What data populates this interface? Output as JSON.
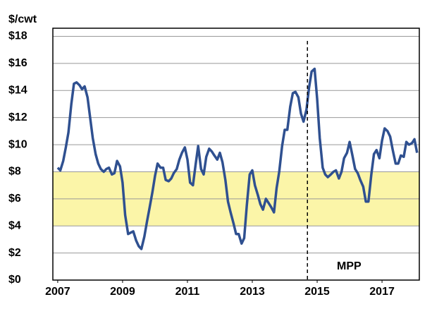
{
  "chart_data": {
    "type": "line",
    "y_label": "$/cwt",
    "annotation": "MPP",
    "vline": 2014.7,
    "band": [
      4,
      8
    ],
    "band_color": "#fbf5a8",
    "grid": true,
    "xlim": [
      2006.85,
      2018.15
    ],
    "ylim": [
      0,
      18.6
    ],
    "xticks": [
      2007,
      2009,
      2011,
      2013,
      2015,
      2017
    ],
    "yticks": [
      {
        "value": 0,
        "label": "$0"
      },
      {
        "value": 2,
        "label": "$2"
      },
      {
        "value": 4,
        "label": "$4"
      },
      {
        "value": 6,
        "label": "$6"
      },
      {
        "value": 8,
        "label": "$8"
      },
      {
        "value": 10,
        "label": "$10"
      },
      {
        "value": 12,
        "label": "$12"
      },
      {
        "value": 14,
        "label": "$14"
      },
      {
        "value": 16,
        "label": "$16"
      },
      {
        "value": 18,
        "label": "$18"
      }
    ],
    "x": [
      2007,
      2007.08,
      2007.17,
      2007.25,
      2007.33,
      2007.42,
      2007.5,
      2007.58,
      2007.67,
      2007.75,
      2007.83,
      2007.92,
      2008,
      2008.08,
      2008.17,
      2008.25,
      2008.33,
      2008.42,
      2008.5,
      2008.58,
      2008.67,
      2008.75,
      2008.83,
      2008.92,
      2009,
      2009.08,
      2009.17,
      2009.25,
      2009.33,
      2009.42,
      2009.5,
      2009.58,
      2009.67,
      2009.75,
      2009.83,
      2009.92,
      2010,
      2010.08,
      2010.17,
      2010.25,
      2010.33,
      2010.42,
      2010.5,
      2010.58,
      2010.67,
      2010.75,
      2010.83,
      2010.92,
      2011,
      2011.08,
      2011.17,
      2011.25,
      2011.33,
      2011.42,
      2011.5,
      2011.58,
      2011.67,
      2011.75,
      2011.83,
      2011.92,
      2012,
      2012.08,
      2012.17,
      2012.25,
      2012.33,
      2012.42,
      2012.5,
      2012.58,
      2012.67,
      2012.75,
      2012.83,
      2012.92,
      2013,
      2013.08,
      2013.17,
      2013.25,
      2013.33,
      2013.42,
      2013.5,
      2013.58,
      2013.67,
      2013.75,
      2013.83,
      2013.92,
      2014,
      2014.08,
      2014.17,
      2014.25,
      2014.33,
      2014.42,
      2014.5,
      2014.58,
      2014.67,
      2014.75,
      2014.83,
      2014.92,
      2015,
      2015.08,
      2015.17,
      2015.25,
      2015.33,
      2015.42,
      2015.5,
      2015.58,
      2015.67,
      2015.75,
      2015.83,
      2015.92,
      2016,
      2016.08,
      2016.17,
      2016.25,
      2016.33,
      2016.42,
      2016.5,
      2016.58,
      2016.67,
      2016.75,
      2016.83,
      2016.92,
      2017,
      2017.08,
      2017.17,
      2017.25,
      2017.33,
      2017.42,
      2017.5,
      2017.58,
      2017.67,
      2017.75,
      2017.83,
      2017.92,
      2018,
      2018.08
    ],
    "series": [
      {
        "color": "#2f5090",
        "values": [
          8.3,
          8.1,
          8.8,
          9.8,
          10.9,
          13.0,
          14.5,
          14.6,
          14.4,
          14.1,
          14.3,
          13.5,
          12.0,
          10.5,
          9.3,
          8.6,
          8.2,
          8.0,
          8.2,
          8.3,
          7.8,
          7.9,
          8.8,
          8.4,
          7.2,
          4.8,
          3.4,
          3.5,
          3.6,
          2.9,
          2.5,
          2.3,
          3.2,
          4.3,
          5.3,
          6.5,
          7.7,
          8.6,
          8.3,
          8.3,
          7.4,
          7.3,
          7.5,
          7.9,
          8.2,
          8.9,
          9.4,
          9.8,
          8.9,
          7.2,
          7.0,
          8.5,
          9.9,
          8.2,
          7.8,
          9.1,
          9.7,
          9.5,
          9.2,
          8.9,
          9.4,
          8.7,
          7.4,
          5.8,
          5.0,
          4.2,
          3.4,
          3.4,
          2.7,
          3.1,
          5.5,
          7.8,
          8.1,
          7.0,
          6.3,
          5.6,
          5.2,
          6.0,
          5.7,
          5.4,
          5.0,
          6.8,
          8.0,
          9.9,
          11.1,
          11.1,
          12.8,
          13.8,
          13.9,
          13.5,
          12.3,
          11.7,
          12.6,
          14.2,
          15.4,
          15.6,
          13.4,
          10.5,
          8.3,
          7.8,
          7.6,
          7.8,
          8.0,
          8.1,
          7.5,
          8.0,
          9.0,
          9.4,
          10.2,
          9.3,
          8.2,
          7.9,
          7.4,
          6.9,
          5.8,
          5.8,
          7.8,
          9.3,
          9.6,
          9.0,
          10.3,
          11.2,
          11.0,
          10.6,
          9.6,
          8.6,
          8.6,
          9.2,
          9.1,
          10.2,
          10.0,
          10.1,
          10.4,
          9.4
        ]
      }
    ]
  }
}
